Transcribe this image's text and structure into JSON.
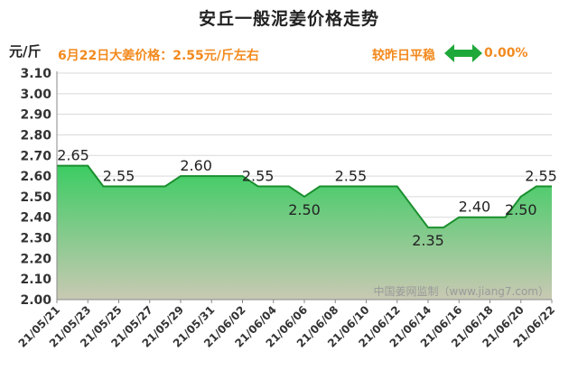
{
  "header": {
    "title": "安丘一般泥姜价格走势",
    "unit": "元/斤",
    "price_note": "6月22日大姜价格：2.55元/斤左右",
    "compare_label": "较昨日平稳",
    "compare_icon": "double-arrow-icon",
    "change": "0.00%",
    "accent_color": "#f28a1e",
    "icon_color": "#1fa83a"
  },
  "watermark": "中国姜网监制（www.jiang7.com）",
  "chart_data": {
    "type": "area",
    "x": [
      "21/05/21",
      "21/05/22",
      "21/05/23",
      "21/05/24",
      "21/05/25",
      "21/05/26",
      "21/05/27",
      "21/05/28",
      "21/05/29",
      "21/05/30",
      "21/05/31",
      "21/06/01",
      "21/06/02",
      "21/06/03",
      "21/06/04",
      "21/06/05",
      "21/06/06",
      "21/06/07",
      "21/06/08",
      "21/06/09",
      "21/06/10",
      "21/06/11",
      "21/06/12",
      "21/06/13",
      "21/06/14",
      "21/06/15",
      "21/06/16",
      "21/06/17",
      "21/06/18",
      "21/06/19",
      "21/06/20",
      "21/06/21",
      "21/06/22"
    ],
    "values": [
      2.65,
      2.65,
      2.65,
      2.55,
      2.55,
      2.55,
      2.55,
      2.55,
      2.6,
      2.6,
      2.6,
      2.6,
      2.6,
      2.55,
      2.55,
      2.55,
      2.5,
      2.55,
      2.55,
      2.55,
      2.55,
      2.55,
      2.55,
      2.45,
      2.35,
      2.35,
      2.4,
      2.4,
      2.4,
      2.4,
      2.5,
      2.55,
      2.55
    ],
    "x_tick_labels": [
      "21/05/21",
      "21/05/23",
      "21/05/25",
      "21/05/27",
      "21/05/29",
      "21/05/31",
      "21/06/02",
      "21/06/04",
      "21/06/06",
      "21/06/08",
      "21/06/10",
      "21/06/12",
      "21/06/14",
      "21/06/16",
      "21/06/18",
      "21/06/20",
      "21/06/22"
    ],
    "y_ticks": [
      "2.00",
      "2.10",
      "2.20",
      "2.30",
      "2.40",
      "2.50",
      "2.60",
      "2.70",
      "2.80",
      "2.90",
      "3.00",
      "3.10"
    ],
    "ylim": [
      2.0,
      3.1
    ],
    "data_labels": [
      {
        "x": "21/05/21",
        "text": "2.65",
        "pos": "above"
      },
      {
        "x": "21/05/25",
        "text": "2.55",
        "pos": "above"
      },
      {
        "x": "21/05/30",
        "text": "2.60",
        "pos": "above"
      },
      {
        "x": "21/06/03",
        "text": "2.55",
        "pos": "above"
      },
      {
        "x": "21/06/06",
        "text": "2.50",
        "pos": "below"
      },
      {
        "x": "21/06/09",
        "text": "2.55",
        "pos": "above"
      },
      {
        "x": "21/06/14",
        "text": "2.35",
        "pos": "below"
      },
      {
        "x": "21/06/17",
        "text": "2.40",
        "pos": "above"
      },
      {
        "x": "21/06/20",
        "text": "2.50",
        "pos": "below"
      },
      {
        "x": "21/06/22",
        "text": "2.55",
        "pos": "above"
      }
    ],
    "grid": "horizontal",
    "line_color": "#1a8f2e",
    "fill_top_color": "#3ccc63",
    "fill_bottom_color": "#c9c9b3"
  }
}
